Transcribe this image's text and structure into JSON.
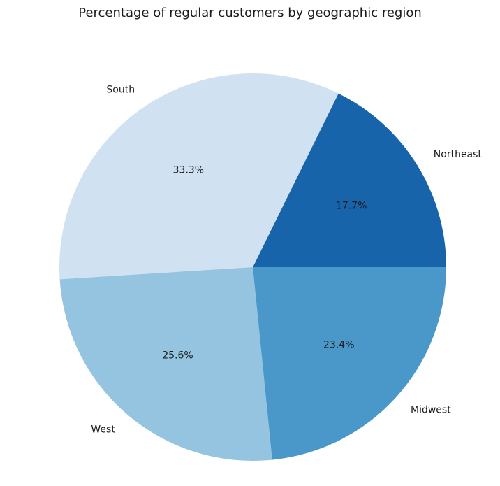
{
  "chart_data": {
    "type": "pie",
    "title": "Percentage of regular customers by geographic region",
    "slices": [
      {
        "label": "Northeast",
        "value": 17.7,
        "pct_label": "17.7%",
        "color": "#1764ab"
      },
      {
        "label": "South",
        "value": 33.3,
        "pct_label": "33.3%",
        "color": "#d0e1f2"
      },
      {
        "label": "West",
        "value": 25.6,
        "pct_label": "25.6%",
        "color": "#94c4df"
      },
      {
        "label": "Midwest",
        "value": 23.4,
        "pct_label": "23.4%",
        "color": "#4a98c9"
      }
    ],
    "start_angle_deg": 0,
    "direction": "counterclockwise",
    "legend": "none"
  }
}
